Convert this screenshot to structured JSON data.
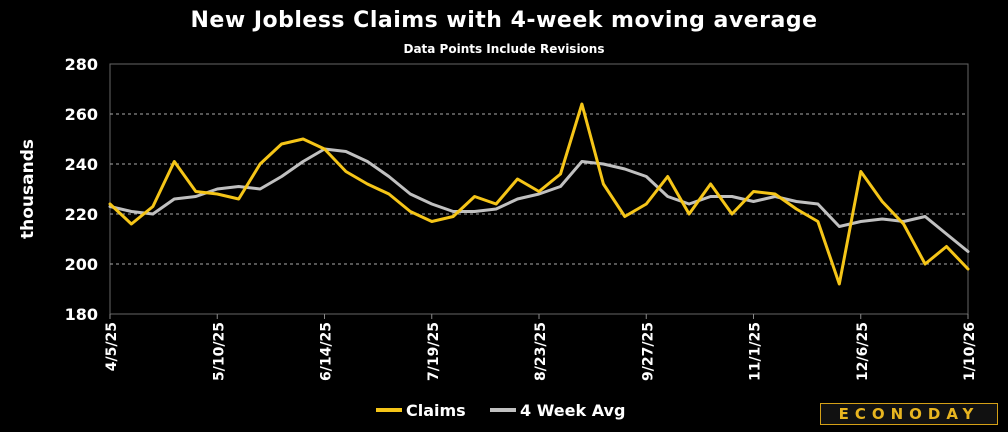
{
  "chart_data": {
    "type": "line",
    "title": "New Jobless Claims with 4-week moving average",
    "subtitle": "Data Points Include Revisions",
    "ylabel": "thousands",
    "ylim": [
      180,
      280
    ],
    "yticks": [
      180,
      200,
      220,
      240,
      260,
      280
    ],
    "grid": true,
    "legend_placement": "bottom-center",
    "x": [
      "4/5/25",
      "4/12/25",
      "4/19/25",
      "4/26/25",
      "5/3/25",
      "5/10/25",
      "5/17/25",
      "5/24/25",
      "5/31/25",
      "6/7/25",
      "6/14/25",
      "6/21/25",
      "6/28/25",
      "7/5/25",
      "7/12/25",
      "7/19/25",
      "7/26/25",
      "8/2/25",
      "8/9/25",
      "8/16/25",
      "8/23/25",
      "8/30/25",
      "9/6/25",
      "9/13/25",
      "9/20/25",
      "9/27/25",
      "10/4/25",
      "10/11/25",
      "10/18/25",
      "10/25/25",
      "11/1/25",
      "11/8/25",
      "11/15/25",
      "11/22/25",
      "11/29/25",
      "12/6/25",
      "12/13/25",
      "12/20/25",
      "12/27/25",
      "1/3/26",
      "1/10/26"
    ],
    "x_tick_labels": [
      "4/5/25",
      "5/10/25",
      "6/14/25",
      "7/19/25",
      "8/23/25",
      "9/27/25",
      "11/1/25",
      "12/6/25",
      "1/10/26"
    ],
    "series": [
      {
        "name": "Claims",
        "color": "#f5c518",
        "values": [
          224,
          216,
          223,
          241,
          229,
          228,
          226,
          240,
          248,
          250,
          246,
          237,
          232,
          228,
          221,
          217,
          219,
          227,
          224,
          234,
          229,
          236,
          264,
          232,
          219,
          224,
          235,
          220,
          232,
          220,
          229,
          228,
          222,
          217,
          192,
          237,
          225,
          216,
          200,
          207,
          198
        ]
      },
      {
        "name": "4 Week Avg",
        "color": "#c0c0c0",
        "values": [
          223,
          221,
          220,
          226,
          227,
          230,
          231,
          230,
          235,
          241,
          246,
          245,
          241,
          235,
          228,
          224,
          221,
          221,
          222,
          226,
          228,
          231,
          241,
          240,
          238,
          235,
          227,
          224,
          227,
          227,
          225,
          227,
          225,
          224,
          215,
          217,
          218,
          217,
          219,
          212,
          205
        ]
      }
    ]
  },
  "brand": {
    "text": "ECONODAY"
  }
}
